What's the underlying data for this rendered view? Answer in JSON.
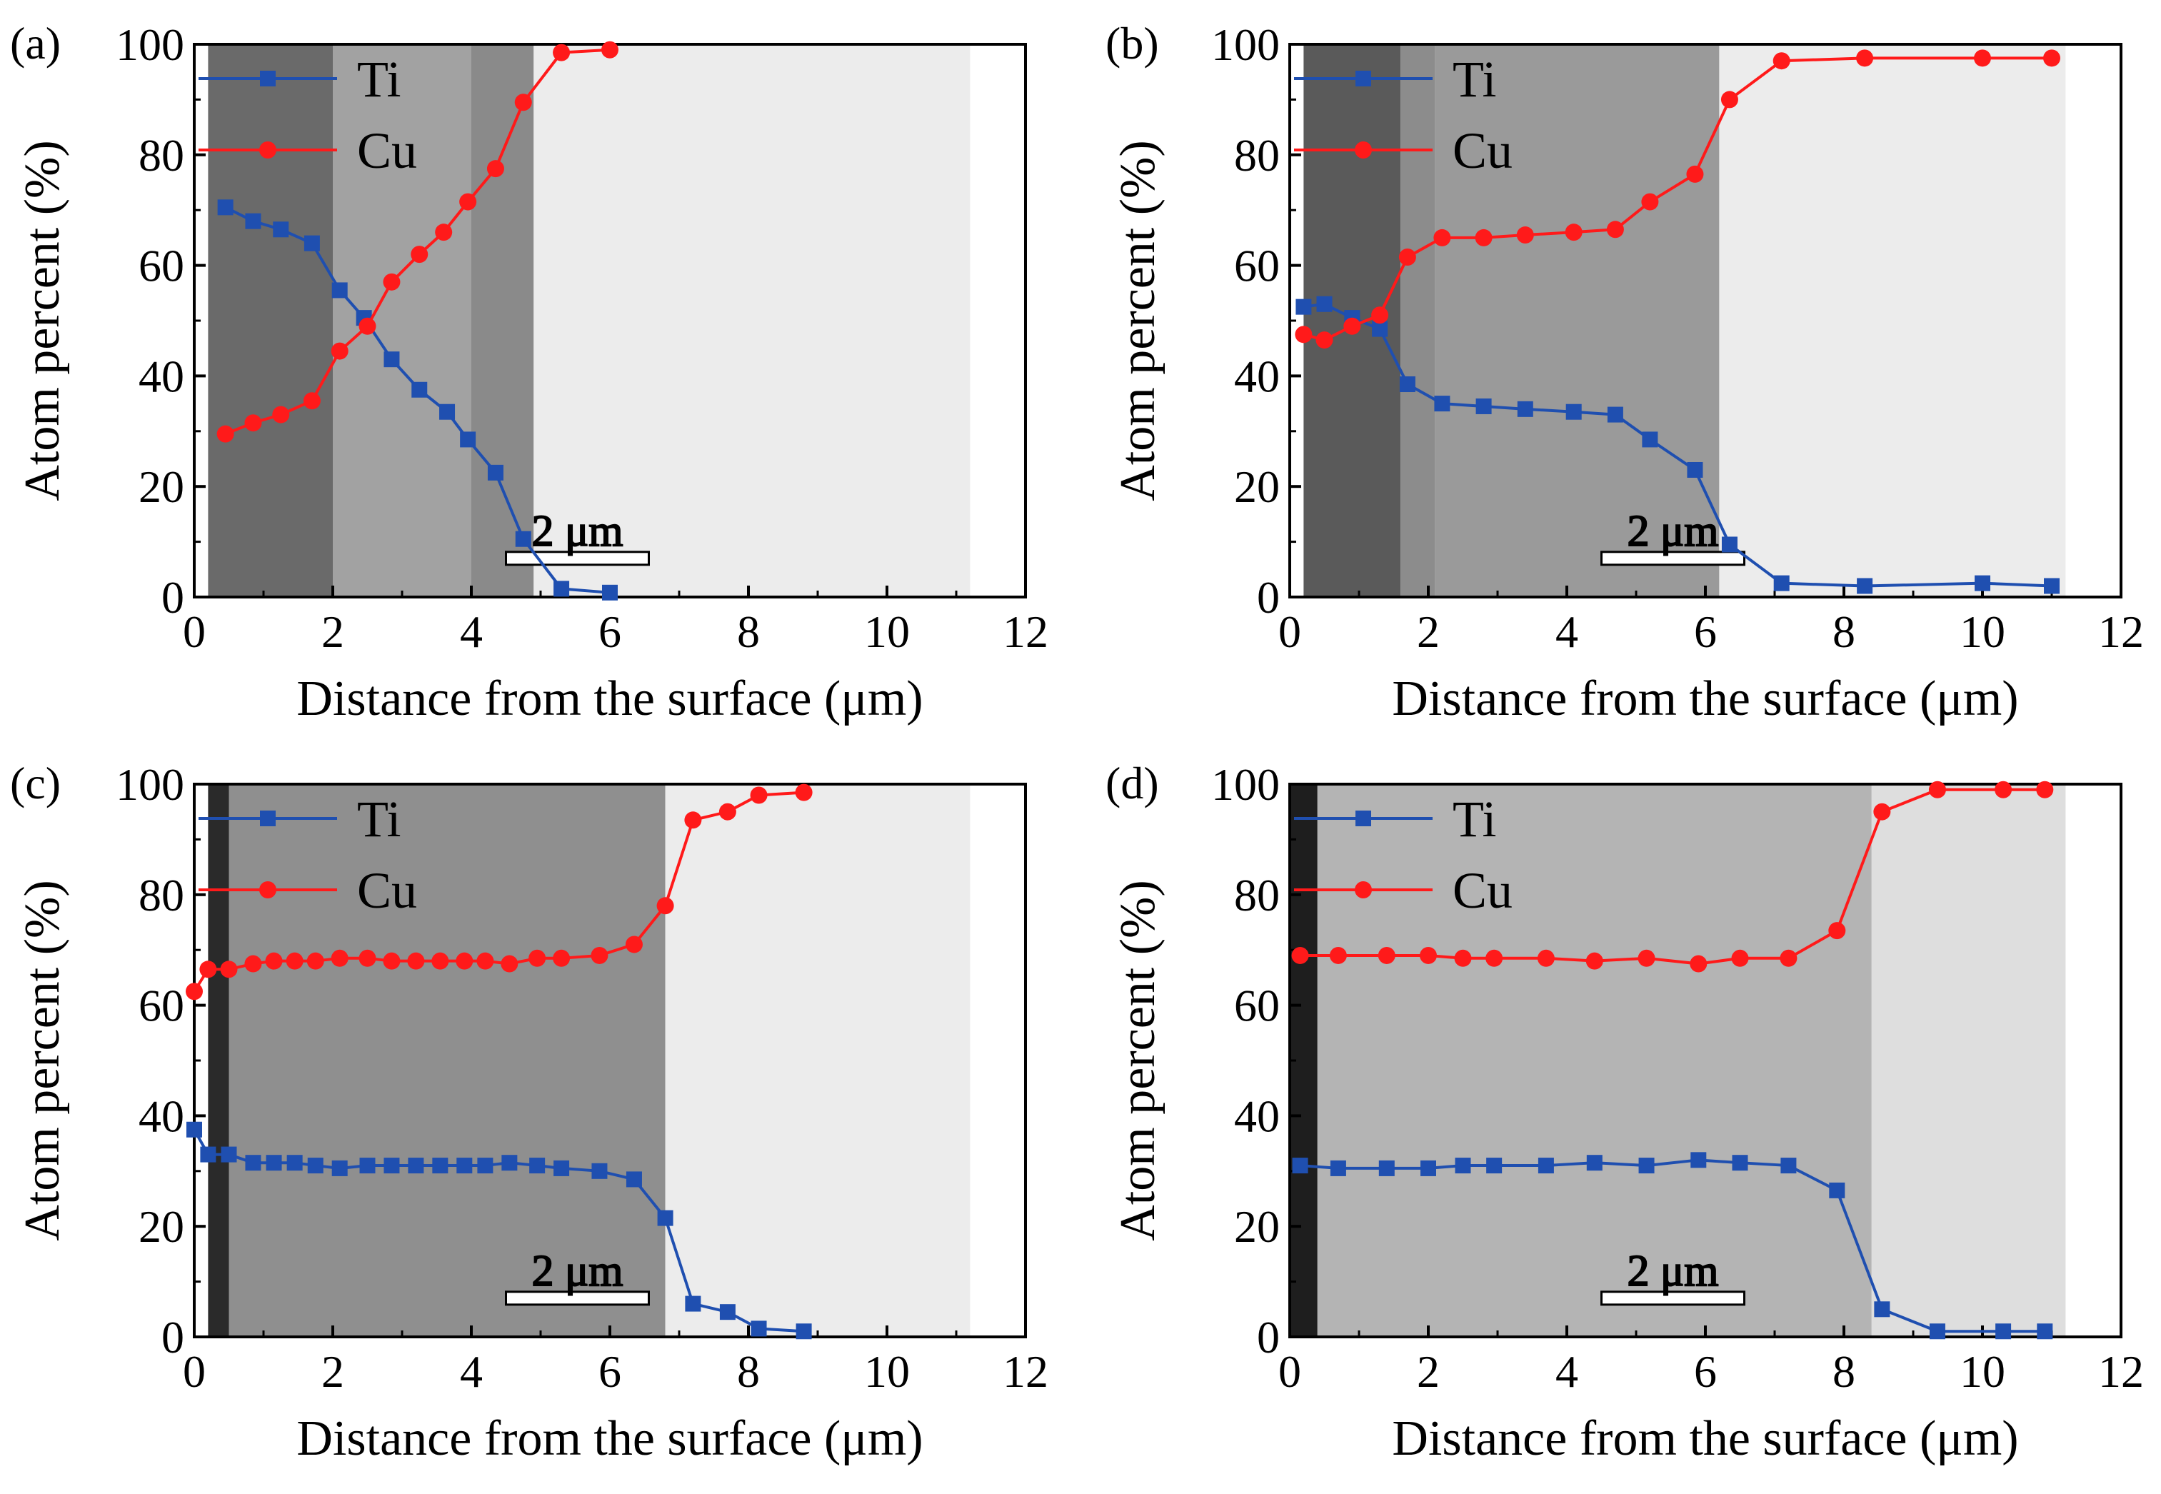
{
  "colors": {
    "ti": "#1f4fb0",
    "cu": "#ff1a1a",
    "axis": "#000000"
  },
  "chart_data": [
    {
      "type": "line",
      "panel_label": "(a)",
      "xlabel": "Distance from the surface (μm)",
      "ylabel": "Atom percent (%)",
      "xlim": [
        0,
        12
      ],
      "ylim": [
        0,
        100
      ],
      "xticks": [
        "0",
        "2",
        "4",
        "6",
        "8",
        "10",
        "12"
      ],
      "yticks": [
        "0",
        "20",
        "40",
        "60",
        "80",
        "100"
      ],
      "image_extent_x": [
        0.2,
        11.2
      ],
      "image_layers": [
        {
          "x0": 0.2,
          "x1": 2.0,
          "tone": "#6a6a6a"
        },
        {
          "x0": 2.0,
          "x1": 4.0,
          "tone": "#a2a2a2"
        },
        {
          "x0": 4.0,
          "x1": 4.9,
          "tone": "#8a8a8a"
        },
        {
          "x0": 4.9,
          "x1": 11.2,
          "tone": "#ececec"
        }
      ],
      "scale_bar": "2 μm",
      "series": [
        {
          "name": "Ti",
          "marker": "square",
          "x": [
            0.45,
            0.85,
            1.25,
            1.7,
            2.1,
            2.45,
            2.85,
            3.25,
            3.65,
            3.95,
            4.35,
            4.75,
            5.3,
            6.0
          ],
          "y": [
            70.5,
            68,
            66.5,
            64,
            55.5,
            50.5,
            43,
            37.5,
            33.5,
            28.5,
            22.5,
            10.5,
            1.5,
            0.8
          ]
        },
        {
          "name": "Cu",
          "marker": "circle",
          "x": [
            0.45,
            0.85,
            1.25,
            1.7,
            2.1,
            2.5,
            2.85,
            3.25,
            3.6,
            3.95,
            4.35,
            4.75,
            5.3,
            6.0
          ],
          "y": [
            29.5,
            31.5,
            33,
            35.5,
            44.5,
            49,
            57,
            62,
            66,
            71.5,
            77.5,
            89.5,
            98.5,
            99
          ]
        }
      ]
    },
    {
      "type": "line",
      "panel_label": "(b)",
      "xlabel": "Distance from the surface (μm)",
      "ylabel": "Atom percent (%)",
      "xlim": [
        0,
        12
      ],
      "ylim": [
        0,
        100
      ],
      "xticks": [
        "0",
        "2",
        "4",
        "6",
        "8",
        "10",
        "12"
      ],
      "yticks": [
        "0",
        "20",
        "40",
        "60",
        "80",
        "100"
      ],
      "image_extent_x": [
        0.2,
        11.2
      ],
      "image_layers": [
        {
          "x0": 0.2,
          "x1": 1.6,
          "tone": "#5a5a5a"
        },
        {
          "x0": 1.6,
          "x1": 2.1,
          "tone": "#8c8c8c"
        },
        {
          "x0": 2.1,
          "x1": 6.2,
          "tone": "#9a9a9a"
        },
        {
          "x0": 6.2,
          "x1": 11.2,
          "tone": "#ececec"
        }
      ],
      "scale_bar": "2 μm",
      "series": [
        {
          "name": "Ti",
          "marker": "square",
          "x": [
            0.2,
            0.5,
            0.9,
            1.3,
            1.7,
            2.2,
            2.8,
            3.4,
            4.1,
            4.7,
            5.2,
            5.85,
            6.35,
            7.1,
            8.3,
            10.0,
            11.0
          ],
          "y": [
            52.5,
            53,
            50.5,
            48.5,
            38.5,
            35,
            34.5,
            34,
            33.5,
            33,
            28.5,
            23,
            9.5,
            2.5,
            2,
            2.5,
            2
          ]
        },
        {
          "name": "Cu",
          "marker": "circle",
          "x": [
            0.2,
            0.5,
            0.9,
            1.3,
            1.7,
            2.2,
            2.8,
            3.4,
            4.1,
            4.7,
            5.2,
            5.85,
            6.35,
            7.1,
            8.3,
            10.0,
            11.0
          ],
          "y": [
            47.5,
            46.5,
            49,
            51,
            61.5,
            65,
            65,
            65.5,
            66,
            66.5,
            71.5,
            76.5,
            90,
            97,
            97.5,
            97.5,
            97.5
          ]
        }
      ]
    },
    {
      "type": "line",
      "panel_label": "(c)",
      "xlabel": "Distance from the surface (μm)",
      "ylabel": "Atom percent (%)",
      "xlim": [
        0,
        12
      ],
      "ylim": [
        0,
        100
      ],
      "xticks": [
        "0",
        "2",
        "4",
        "6",
        "8",
        "10",
        "12"
      ],
      "yticks": [
        "0",
        "20",
        "40",
        "60",
        "80",
        "100"
      ],
      "image_extent_x": [
        0.2,
        11.2
      ],
      "image_layers": [
        {
          "x0": 0.2,
          "x1": 0.5,
          "tone": "#2a2a2a"
        },
        {
          "x0": 0.5,
          "x1": 6.8,
          "tone": "#8f8f8f"
        },
        {
          "x0": 6.8,
          "x1": 11.2,
          "tone": "#ececec"
        }
      ],
      "scale_bar": "2 μm",
      "series": [
        {
          "name": "Ti",
          "marker": "square",
          "x": [
            0.0,
            0.2,
            0.5,
            0.85,
            1.15,
            1.45,
            1.75,
            2.1,
            2.5,
            2.85,
            3.2,
            3.55,
            3.9,
            4.2,
            4.55,
            4.95,
            5.3,
            5.85,
            6.35,
            6.8,
            7.2,
            7.7,
            8.15,
            8.8
          ],
          "y": [
            37.5,
            33,
            33,
            31.5,
            31.5,
            31.5,
            31,
            30.5,
            31,
            31,
            31,
            31,
            31,
            31,
            31.5,
            31,
            30.5,
            30,
            28.5,
            21.5,
            6,
            4.5,
            1.5,
            1
          ]
        },
        {
          "name": "Cu",
          "marker": "circle",
          "x": [
            0.0,
            0.2,
            0.5,
            0.85,
            1.15,
            1.45,
            1.75,
            2.1,
            2.5,
            2.85,
            3.2,
            3.55,
            3.9,
            4.2,
            4.55,
            4.95,
            5.3,
            5.85,
            6.35,
            6.8,
            7.2,
            7.7,
            8.15,
            8.8
          ],
          "y": [
            62.5,
            66.5,
            66.5,
            67.5,
            68,
            68,
            68,
            68.5,
            68.5,
            68,
            68,
            68,
            68,
            68,
            67.5,
            68.5,
            68.5,
            69,
            71,
            78,
            93.5,
            95,
            98,
            98.5
          ]
        }
      ]
    },
    {
      "type": "line",
      "panel_label": "(d)",
      "xlabel": "Distance from the surface (μm)",
      "ylabel": "Atom percent (%)",
      "xlim": [
        0,
        12
      ],
      "ylim": [
        0,
        100
      ],
      "xticks": [
        "0",
        "2",
        "4",
        "6",
        "8",
        "10",
        "12"
      ],
      "yticks": [
        "0",
        "20",
        "40",
        "60",
        "80",
        "100"
      ],
      "image_extent_x": [
        0.0,
        11.2
      ],
      "image_layers": [
        {
          "x0": 0.0,
          "x1": 0.4,
          "tone": "#1e1e1e"
        },
        {
          "x0": 0.4,
          "x1": 8.4,
          "tone": "#b4b4b4"
        },
        {
          "x0": 8.4,
          "x1": 11.2,
          "tone": "#dedede"
        }
      ],
      "scale_bar": "2 μm",
      "series": [
        {
          "name": "Ti",
          "marker": "square",
          "x": [
            0.15,
            0.7,
            1.4,
            2.0,
            2.5,
            2.95,
            3.7,
            4.4,
            5.15,
            5.9,
            6.5,
            7.2,
            7.9,
            8.55,
            9.35,
            10.3,
            10.9
          ],
          "y": [
            31,
            30.5,
            30.5,
            30.5,
            31,
            31,
            31,
            31.5,
            31,
            32,
            31.5,
            31,
            26.5,
            5,
            1,
            1,
            1
          ]
        },
        {
          "name": "Cu",
          "marker": "circle",
          "x": [
            0.15,
            0.7,
            1.4,
            2.0,
            2.5,
            2.95,
            3.7,
            4.4,
            5.15,
            5.9,
            6.5,
            7.2,
            7.9,
            8.55,
            9.35,
            10.3,
            10.9
          ],
          "y": [
            69,
            69,
            69,
            69,
            68.5,
            68.5,
            68.5,
            68,
            68.5,
            67.5,
            68.5,
            68.5,
            73.5,
            95,
            99,
            99,
            99
          ]
        }
      ]
    }
  ]
}
